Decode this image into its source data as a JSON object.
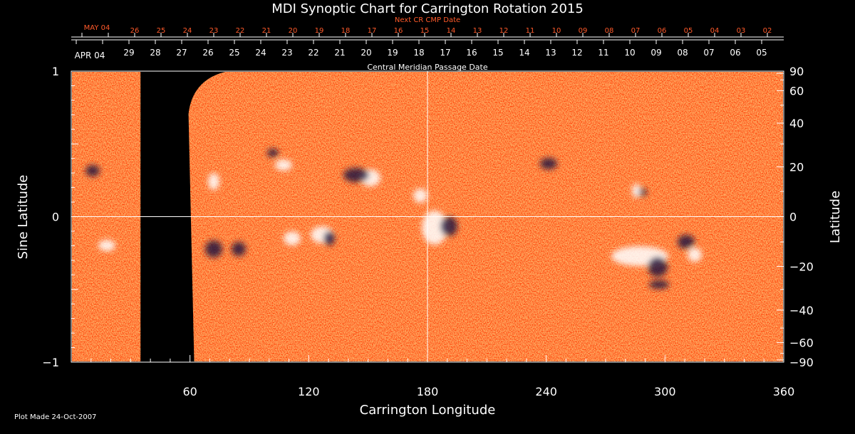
{
  "chart_data": {
    "type": "heatmap",
    "title": "MDI Synoptic Chart for Carrington Rotation 2015",
    "xlabel": "Carrington Longitude",
    "ylabel_left": "Sine Latitude",
    "ylabel_right": "Latitude",
    "xlim": [
      0,
      360
    ],
    "ylim": [
      -1,
      1
    ],
    "x_ticks": [
      60,
      120,
      180,
      240,
      300,
      360
    ],
    "y_ticks_left": [
      {
        "v": 1,
        "t": "1"
      },
      {
        "v": 0,
        "t": "0"
      },
      {
        "v": -1,
        "t": "−1"
      }
    ],
    "y_ticks_right_deg": [
      90,
      60,
      40,
      20,
      0,
      -20,
      -40,
      -60,
      -90
    ],
    "y_ticks_right_labels": [
      "90",
      "60",
      "40",
      "20",
      "0",
      "−20",
      "−40",
      "−60",
      "−90"
    ],
    "cmp_axis_label": "Central Meridian Passage Date",
    "cmp_start_label": "APR 04",
    "cmp_dates": [
      "29",
      "28",
      "27",
      "26",
      "25",
      "24",
      "23",
      "22",
      "21",
      "20",
      "19",
      "18",
      "17",
      "16",
      "15",
      "14",
      "13",
      "12",
      "11",
      "10",
      "09",
      "08",
      "07",
      "06",
      "05"
    ],
    "next_cr_axis_label": "Next CR CMP Date",
    "next_cr_start_label": "MAY 04",
    "next_cr_dates": [
      "26",
      "25",
      "24",
      "23",
      "22",
      "21",
      "20",
      "19",
      "18",
      "17",
      "16",
      "15",
      "14",
      "13",
      "12",
      "11",
      "10",
      "09",
      "08",
      "07",
      "06",
      "05",
      "04",
      "03",
      "02"
    ],
    "data_gaps_longitude": [
      [
        35,
        65
      ]
    ],
    "central_meridian_longitude": 180,
    "colors": {
      "background": "#000000",
      "field_base": "#ff5a14",
      "positive": "#ffffff",
      "negative": "#1a1040",
      "accent_text": "#ff5a2a"
    }
  },
  "footer": {
    "plot_made": "Plot Made 24-Oct-2007"
  }
}
